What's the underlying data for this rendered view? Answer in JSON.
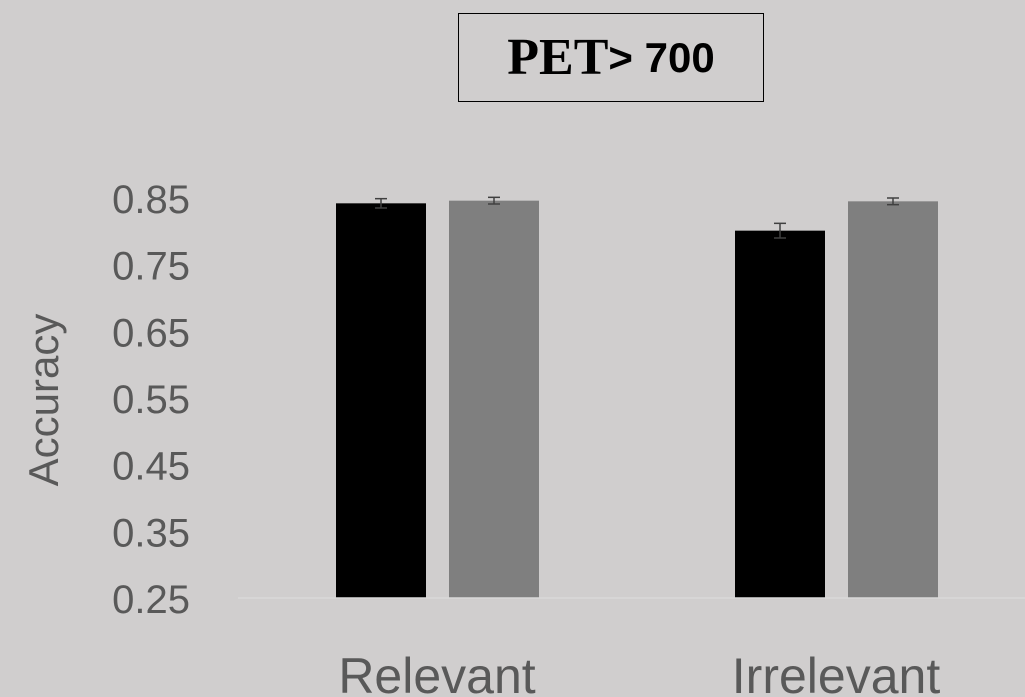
{
  "chart_data": {
    "type": "bar",
    "title": "PET  > 700",
    "title_parts": [
      "PET",
      "> 700"
    ],
    "xlabel": "",
    "ylabel": "Accuracy",
    "categories": [
      "Relevant",
      "Irrelevant"
    ],
    "yticks": [
      "0.85",
      "0.75",
      "0.65",
      "0.55",
      "0.45",
      "0.35",
      "0.25"
    ],
    "ylim": [
      0.25,
      0.85
    ],
    "grid": false,
    "legend": "none",
    "series": [
      {
        "values": [
          0.842,
          0.801
        ],
        "errors": [
          0.007,
          0.011
        ],
        "color": "#000000"
      },
      {
        "values": [
          0.846,
          0.845
        ],
        "errors": [
          0.005,
          0.005
        ],
        "color": "#7f7f7f"
      }
    ]
  },
  "colors": {
    "background": "#d0cece",
    "text": "#595959",
    "axis": "#d9d9d9"
  }
}
